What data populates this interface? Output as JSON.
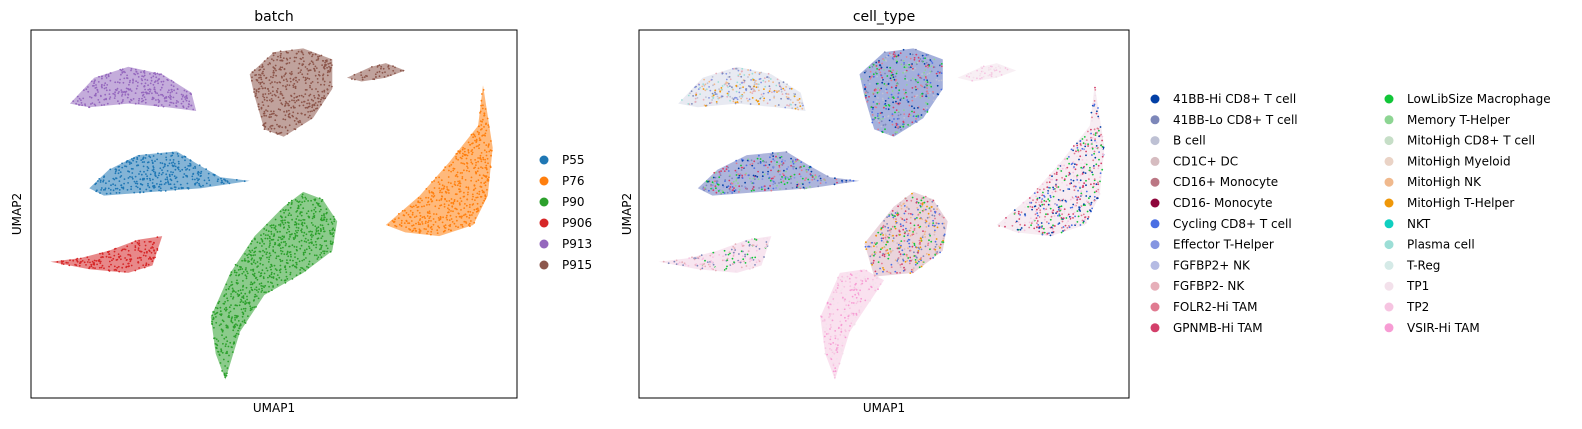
{
  "chart_data": [
    {
      "type": "scatter",
      "title": "batch",
      "xlabel": "UMAP1",
      "ylabel": "UMAP2",
      "xlim": [
        0,
        100
      ],
      "ylim": [
        0,
        100
      ],
      "grid": false,
      "ticks": false,
      "legend": "right",
      "legend_columns": 1,
      "legend_entries": [
        {
          "label": "P55",
          "color": "#1f77b4"
        },
        {
          "label": "P76",
          "color": "#ff7f0e"
        },
        {
          "label": "P90",
          "color": "#2ca02c"
        },
        {
          "label": "P906",
          "color": "#d62728"
        },
        {
          "label": "P913",
          "color": "#9467bd"
        },
        {
          "label": "P915",
          "color": "#8c564b"
        }
      ],
      "clusters": [
        {
          "label": "P913",
          "color": "#9467bd",
          "polygon": [
            [
              8,
              80
            ],
            [
              13,
              87
            ],
            [
              20,
              90
            ],
            [
              27,
              88
            ],
            [
              33,
              83
            ],
            [
              34,
              78
            ],
            [
              28,
              79
            ],
            [
              20,
              80
            ],
            [
              12,
              79
            ]
          ]
        },
        {
          "label": "P915",
          "color": "#8c564b",
          "polygon": [
            [
              45,
              88
            ],
            [
              50,
              94
            ],
            [
              56,
              95
            ],
            [
              62,
              92
            ],
            [
              62,
              84
            ],
            [
              58,
              76
            ],
            [
              52,
              71
            ],
            [
              48,
              73
            ],
            [
              46,
              82
            ]
          ]
        },
        {
          "label": "P915",
          "color": "#8c564b",
          "polygon": [
            [
              65,
              87
            ],
            [
              70,
              90
            ],
            [
              73,
              91
            ],
            [
              77,
              89
            ],
            [
              73,
              87
            ],
            [
              68,
              86
            ]
          ]
        },
        {
          "label": "P55",
          "color": "#1f77b4",
          "polygon": [
            [
              12,
              57
            ],
            [
              16,
              62
            ],
            [
              22,
              66
            ],
            [
              30,
              67
            ],
            [
              35,
              63
            ],
            [
              39,
              60
            ],
            [
              45,
              59
            ],
            [
              35,
              57
            ],
            [
              25,
              56
            ],
            [
              15,
              55
            ]
          ]
        },
        {
          "label": "P76",
          "color": "#ff7f0e",
          "polygon": [
            [
              73,
              47
            ],
            [
              80,
              55
            ],
            [
              86,
              64
            ],
            [
              92,
              74
            ],
            [
              93,
              85
            ],
            [
              95,
              68
            ],
            [
              94,
              55
            ],
            [
              91,
              47
            ],
            [
              84,
              44
            ],
            [
              77,
              45
            ]
          ]
        },
        {
          "label": "P906",
          "color": "#d62728",
          "polygon": [
            [
              4,
              37
            ],
            [
              10,
              38
            ],
            [
              16,
              40
            ],
            [
              22,
              43
            ],
            [
              27,
              44
            ],
            [
              25,
              36
            ],
            [
              20,
              34
            ],
            [
              12,
              35
            ]
          ]
        },
        {
          "label": "P90",
          "color": "#2ca02c",
          "polygon": [
            [
              52,
              52
            ],
            [
              56,
              56
            ],
            [
              60,
              54
            ],
            [
              63,
              48
            ],
            [
              62,
              40
            ],
            [
              56,
              34
            ],
            [
              48,
              28
            ],
            [
              43,
              18
            ],
            [
              40,
              5
            ],
            [
              38,
              12
            ],
            [
              37,
              22
            ],
            [
              41,
              34
            ],
            [
              46,
              44
            ]
          ]
        }
      ]
    },
    {
      "type": "scatter",
      "title": "cell_type",
      "xlabel": "UMAP1",
      "ylabel": "UMAP2",
      "xlim": [
        0,
        100
      ],
      "ylim": [
        0,
        100
      ],
      "grid": false,
      "ticks": false,
      "legend": "right",
      "legend_columns": 2,
      "legend_entries": [
        {
          "label": "41BB-Hi CD8+ T cell",
          "color": "#023fa5"
        },
        {
          "label": "41BB-Lo CD8+ T cell",
          "color": "#7d87b9"
        },
        {
          "label": "B cell",
          "color": "#bec1d4"
        },
        {
          "label": "CD1C+ DC",
          "color": "#d6bcc0"
        },
        {
          "label": "CD16+ Monocyte",
          "color": "#bb7784"
        },
        {
          "label": "CD16- Monocyte",
          "color": "#8e063b"
        },
        {
          "label": "Cycling CD8+ T cell",
          "color": "#4a6fe3"
        },
        {
          "label": "Effector T-Helper",
          "color": "#8595e1"
        },
        {
          "label": "FGFBP2+ NK",
          "color": "#b5bbe3"
        },
        {
          "label": "FGFBP2- NK",
          "color": "#e6afb9"
        },
        {
          "label": "FOLR2-Hi TAM",
          "color": "#e07b91"
        },
        {
          "label": "GPNMB-Hi TAM",
          "color": "#d33f6a"
        },
        {
          "label": "LowLibSize Macrophage",
          "color": "#11c638"
        },
        {
          "label": "Memory T-Helper",
          "color": "#8dd593"
        },
        {
          "label": "MitoHigh CD8+ T cell",
          "color": "#c6dec7"
        },
        {
          "label": "MitoHigh Myeloid",
          "color": "#ead3c6"
        },
        {
          "label": "MitoHigh NK",
          "color": "#f0b98d"
        },
        {
          "label": "MitoHigh T-Helper",
          "color": "#ef9708"
        },
        {
          "label": "NKT",
          "color": "#0fcfc0"
        },
        {
          "label": "Plasma cell",
          "color": "#9cded6"
        },
        {
          "label": "T-Reg",
          "color": "#d5eae7"
        },
        {
          "label": "TP1",
          "color": "#f3e1eb"
        },
        {
          "label": "TP2",
          "color": "#f6c4e1"
        },
        {
          "label": "VSIR-Hi TAM",
          "color": "#f79cd4"
        }
      ],
      "clusters": [
        {
          "mix": [
            "#8595e1",
            "#f0b98d",
            "#9cded6",
            "#bec1d4",
            "#ef9708",
            "#e6afb9",
            "#7d87b9"
          ],
          "base": "#d6d8e8",
          "polygon": [
            [
              8,
              80
            ],
            [
              13,
              87
            ],
            [
              20,
              90
            ],
            [
              27,
              88
            ],
            [
              33,
              83
            ],
            [
              34,
              78
            ],
            [
              28,
              79
            ],
            [
              20,
              80
            ],
            [
              12,
              79
            ]
          ]
        },
        {
          "mix": [
            "#023fa5",
            "#4a6fe3",
            "#7d87b9",
            "#d33f6a",
            "#e07b91",
            "#11c638",
            "#8dd593",
            "#bec1d4"
          ],
          "base": "#5a6fc0",
          "polygon": [
            [
              45,
              88
            ],
            [
              50,
              94
            ],
            [
              56,
              95
            ],
            [
              62,
              92
            ],
            [
              62,
              84
            ],
            [
              58,
              76
            ],
            [
              52,
              71
            ],
            [
              48,
              73
            ],
            [
              46,
              82
            ]
          ]
        },
        {
          "mix": [
            "#f3e1eb",
            "#f6c4e1"
          ],
          "base": "#f3e1eb",
          "polygon": [
            [
              65,
              87
            ],
            [
              70,
              90
            ],
            [
              73,
              91
            ],
            [
              77,
              89
            ],
            [
              73,
              87
            ],
            [
              68,
              86
            ]
          ]
        },
        {
          "mix": [
            "#023fa5",
            "#4a6fe3",
            "#d33f6a",
            "#7d87b9",
            "#8dd593",
            "#11c638",
            "#8595e1",
            "#e07b91"
          ],
          "base": "#6a78c0",
          "polygon": [
            [
              12,
              57
            ],
            [
              16,
              62
            ],
            [
              22,
              66
            ],
            [
              30,
              67
            ],
            [
              35,
              63
            ],
            [
              39,
              60
            ],
            [
              45,
              59
            ],
            [
              35,
              57
            ],
            [
              25,
              56
            ],
            [
              15,
              55
            ]
          ]
        },
        {
          "mix": [
            "#f3e1eb",
            "#f6c4e1",
            "#d33f6a",
            "#e07b91",
            "#4a6fe3",
            "#11c638",
            "#023fa5"
          ],
          "base": "#f0dde8",
          "polygon": [
            [
              73,
              47
            ],
            [
              80,
              55
            ],
            [
              86,
              64
            ],
            [
              92,
              74
            ],
            [
              93,
              85
            ],
            [
              95,
              68
            ],
            [
              94,
              55
            ],
            [
              91,
              47
            ],
            [
              84,
              44
            ],
            [
              77,
              45
            ]
          ]
        },
        {
          "mix": [
            "#f6c4e1",
            "#f3e1eb",
            "#7d87b9",
            "#11c638",
            "#e6afb9"
          ],
          "base": "#f3d0e4",
          "polygon": [
            [
              4,
              37
            ],
            [
              10,
              38
            ],
            [
              16,
              40
            ],
            [
              22,
              43
            ],
            [
              27,
              44
            ],
            [
              25,
              36
            ],
            [
              20,
              34
            ],
            [
              12,
              35
            ]
          ]
        },
        {
          "mix": [
            "#e07b91",
            "#4a6fe3",
            "#ef9708",
            "#d6bcc0",
            "#11c638",
            "#7d87b9",
            "#f0b98d",
            "#d33f6a"
          ],
          "base": "#d8b0c0",
          "polygon": [
            [
              52,
              52
            ],
            [
              56,
              56
            ],
            [
              60,
              54
            ],
            [
              63,
              48
            ],
            [
              62,
              40
            ],
            [
              56,
              34
            ],
            [
              48,
              33
            ],
            [
              46,
              42
            ]
          ]
        },
        {
          "mix": [
            "#f6c4e1",
            "#f79cd4",
            "#f3e1eb"
          ],
          "base": "#f6c9e2",
          "polygon": [
            [
              46,
              35
            ],
            [
              50,
              32
            ],
            [
              48,
              28
            ],
            [
              43,
              18
            ],
            [
              40,
              5
            ],
            [
              38,
              12
            ],
            [
              37,
              22
            ],
            [
              41,
              34
            ]
          ]
        }
      ]
    }
  ]
}
